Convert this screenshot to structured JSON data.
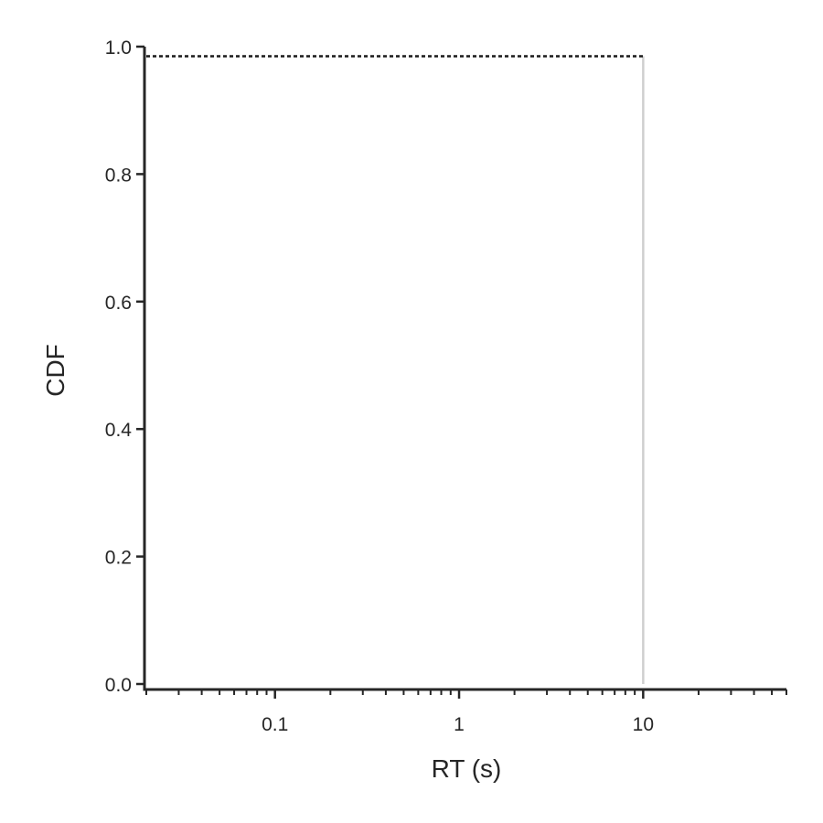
{
  "chart_data": {
    "type": "line",
    "xlabel": "RT (s)",
    "ylabel": "CDF",
    "x_scale": "log",
    "xlim": [
      0.02,
      60
    ],
    "ylim": [
      0.0,
      1.0
    ],
    "x_ticks": [
      {
        "value": 0.1,
        "label": "0.1"
      },
      {
        "value": 1,
        "label": "1"
      },
      {
        "value": 10,
        "label": "10"
      }
    ],
    "y_ticks": [
      {
        "value": 0.0,
        "label": "0.0"
      },
      {
        "value": 0.2,
        "label": "0.2"
      },
      {
        "value": 0.4,
        "label": "0.4"
      },
      {
        "value": 0.6,
        "label": "0.6"
      },
      {
        "value": 0.8,
        "label": "0.8"
      },
      {
        "value": 1.0,
        "label": "1.0"
      }
    ],
    "grid": false,
    "legend": "none",
    "series": [
      {
        "style": "dotted",
        "color": "#1a1a1a",
        "x": [
          0.02,
          10
        ],
        "y": [
          0.985,
          0.985
        ]
      }
    ],
    "vertical_lines": [
      {
        "x": 10,
        "y_from": 0.0,
        "y_to": 0.985,
        "color": "#cfcfcf"
      }
    ],
    "colors": {
      "axis": "#262626",
      "text": "#262626"
    }
  }
}
